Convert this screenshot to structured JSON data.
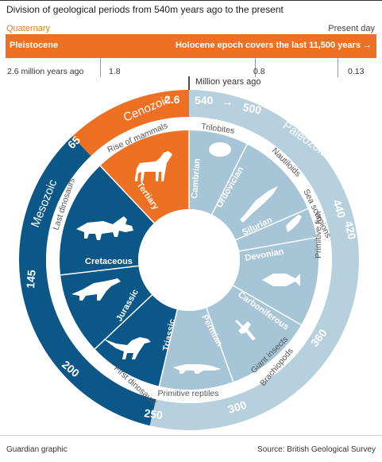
{
  "title": "Division of geological periods from 540m years ago to the present",
  "timeline": {
    "quaternary_label": "Quaternary",
    "present_label": "Present day",
    "bar_left": "Pleistocene",
    "bar_right": "Holocene epoch covers the last 11,500 years →",
    "ticks": [
      "2.6 million years ago",
      "1.8",
      "0.8",
      "0.13"
    ],
    "unit_label": "Million years ago"
  },
  "colors": {
    "cenozoic": "#ee7023",
    "mesozoic": "#0b5788",
    "paleozoic": "#a6c5d6",
    "outer_light": "#b7d0dd",
    "text_grey": "#555555"
  },
  "eras": [
    {
      "name": "Cenozoic",
      "start": 65,
      "end": 0
    },
    {
      "name": "Mesozoic",
      "start": 250,
      "end": 65
    },
    {
      "name": "Paleozoic",
      "start": 540,
      "end": 250
    }
  ],
  "outer_numbers": [
    "2.6",
    "540",
    "500",
    "440",
    "420",
    "360",
    "300",
    "250",
    "200",
    "145",
    "65"
  ],
  "periods": [
    {
      "name": "Tertiary",
      "start": 65,
      "end": 0,
      "era": "cenozoic"
    },
    {
      "name": "Cretaceous",
      "start": 145,
      "end": 65,
      "era": "mesozoic"
    },
    {
      "name": "Jurassic",
      "start": 200,
      "end": 145,
      "era": "mesozoic"
    },
    {
      "name": "Triassic",
      "start": 250,
      "end": 200,
      "era": "mesozoic"
    },
    {
      "name": "Cambrian",
      "start": 540,
      "end": 500,
      "era": "paleozoic"
    },
    {
      "name": "Ordovician",
      "start": 500,
      "end": 440,
      "era": "paleozoic"
    },
    {
      "name": "Silurian",
      "start": 440,
      "end": 420,
      "era": "paleozoic"
    },
    {
      "name": "Devonian",
      "start": 420,
      "end": 360,
      "era": "paleozoic"
    },
    {
      "name": "Carboniferous",
      "start": 360,
      "end": 300,
      "era": "paleozoic"
    },
    {
      "name": "Permian",
      "start": 300,
      "end": 250,
      "era": "paleozoic"
    }
  ],
  "events": {
    "rise_of_mammals": "Rise of mammals",
    "trilobites": "Trilobites",
    "nautiloids": "Nautiloids",
    "sea_scorpions": "Sea scorpions",
    "primitive_fish": "Primitive fish",
    "giant_insects": "Giant insects",
    "brachiopods": "Brachiopods",
    "primitive_reptiles": "Primitive reptiles",
    "first_dinosaurs": "First dinosaurs",
    "last_dinosaurs": "Last dinosaurs"
  },
  "arrow_glyph": "→",
  "footer": {
    "credit": "Guardian graphic",
    "source": "Source: British Geological Survey"
  }
}
